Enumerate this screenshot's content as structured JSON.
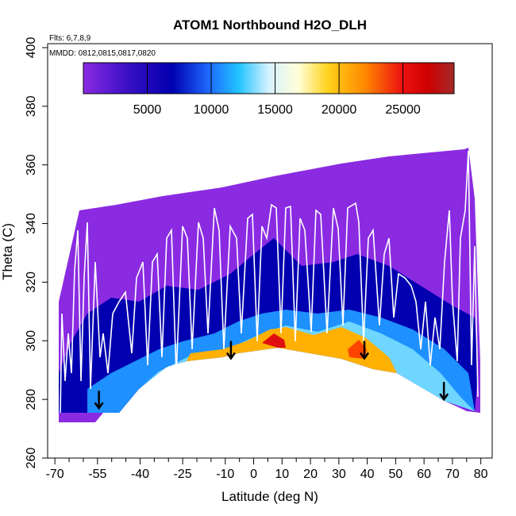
{
  "chart_data": {
    "type": "heatmap",
    "title": "ATOM1 Northbound H2O_DLH",
    "flights_label": "Flts: 6,7,8,9",
    "dates_label": "MMDD: 0812,0815,0817,0820",
    "xlabel": "Latitude (deg N)",
    "ylabel": "Theta (C)",
    "xlim": [
      -72,
      84
    ],
    "ylim": [
      260,
      400
    ],
    "x_ticks": [
      "-70",
      "-55",
      "-40",
      "-25",
      "-10",
      "0",
      "10",
      "20",
      "30",
      "40",
      "50",
      "60",
      "70",
      "80"
    ],
    "x_tick_values": [
      -70,
      -55,
      -40,
      -25,
      -10,
      0,
      10,
      20,
      30,
      40,
      50,
      60,
      70,
      80
    ],
    "x_minor_ticks": [
      -65,
      -60,
      -50,
      -45,
      -35,
      -30,
      -20,
      -15,
      -5,
      5,
      15,
      25,
      35,
      45,
      55,
      65,
      75
    ],
    "y_ticks": [
      "260",
      "280",
      "300",
      "320",
      "340",
      "360",
      "380",
      "400"
    ],
    "y_tick_values": [
      260,
      280,
      300,
      320,
      340,
      360,
      380,
      400
    ],
    "colorbar": {
      "range": [
        0,
        29000
      ],
      "tick_labels": [
        "5000",
        "10000",
        "15000",
        "20000",
        "25000"
      ],
      "tick_values": [
        5000,
        10000,
        15000,
        20000,
        25000
      ]
    },
    "regions": [
      {
        "label": "upper envelope (values below ~2000)",
        "lat_range": [
          -68,
          79
        ],
        "theta_top": [
          315,
          346,
          348,
          352,
          358,
          365
        ]
      },
      {
        "label": "tropical moist core max ~26000",
        "lat_range": [
          5,
          15
        ],
        "theta_range": [
          297,
          302
        ]
      },
      {
        "label": "northern subtropical max ~22000",
        "lat_range": [
          32,
          45
        ],
        "theta_range": [
          294,
          302
        ]
      }
    ],
    "arrows": [
      {
        "lat": -54.5,
        "theta": 277
      },
      {
        "lat": -8,
        "theta": 294
      },
      {
        "lat": 39,
        "theta": 294
      },
      {
        "lat": 67,
        "theta": 280
      }
    ]
  }
}
